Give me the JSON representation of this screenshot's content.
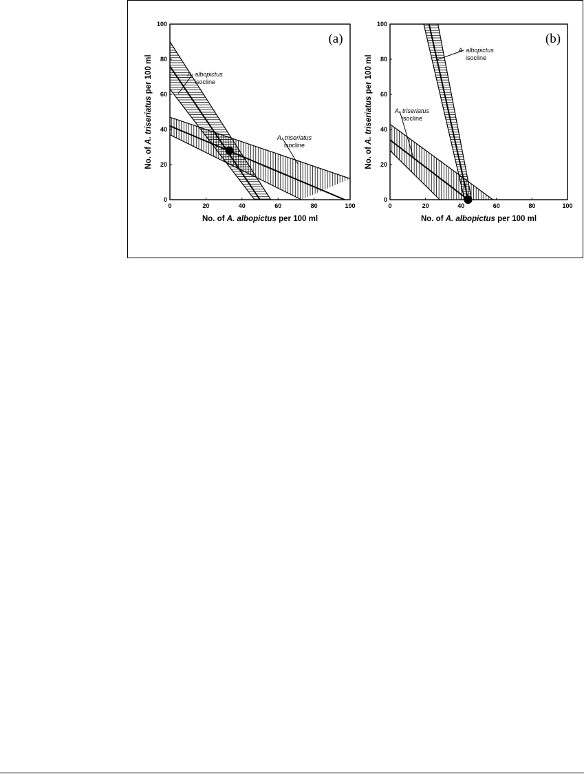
{
  "chart_data": [
    {
      "type": "area",
      "panel_label": "(a)",
      "xlabel": {
        "prefix": "No. of ",
        "species": "A. albopictus",
        "suffix": " per 100 ml"
      },
      "ylabel": {
        "prefix": "No. of ",
        "species": "A. triseriatus",
        "suffix": " per 100 ml"
      },
      "xlim": [
        0,
        100
      ],
      "ylim": [
        0,
        100
      ],
      "xticks": [
        0,
        20,
        40,
        60,
        80,
        100
      ],
      "yticks": [
        0,
        20,
        40,
        60,
        80,
        100
      ],
      "series": [
        {
          "name": "A. albopictus isocline",
          "hatch": "horizontal",
          "center": [
            [
              0,
              76
            ],
            [
              50,
              0
            ]
          ],
          "upper": [
            [
              0,
              90
            ],
            [
              56,
              0
            ]
          ],
          "lower": [
            [
              0,
              63
            ],
            [
              47,
              0
            ]
          ]
        },
        {
          "name": "A. triseriatus isocline",
          "hatch": "vertical",
          "center": [
            [
              0,
              42
            ],
            [
              97,
              0
            ]
          ],
          "upper": [
            [
              0,
              47
            ],
            [
              100,
              12
            ]
          ],
          "lower": [
            [
              0,
              37
            ],
            [
              73,
              0
            ]
          ]
        }
      ],
      "annotations": [
        {
          "italic": "A. albopictus",
          "text": "isocline",
          "target": [
            4,
            70
          ]
        },
        {
          "italic": "A. triseriatus",
          "text": "isocline",
          "target": [
            72,
            20
          ]
        }
      ],
      "equilibrium_point": [
        33,
        28
      ]
    },
    {
      "type": "area",
      "panel_label": "(b)",
      "xlabel": {
        "prefix": "No. of ",
        "species": "A. albopictus",
        "suffix": " per 100 ml"
      },
      "ylabel": {
        "prefix": "No. of ",
        "species": "A. triseriatus",
        "suffix": " per 100 ml"
      },
      "xlim": [
        0,
        100
      ],
      "ylim": [
        0,
        100
      ],
      "xticks": [
        0,
        20,
        40,
        60,
        80,
        100
      ],
      "yticks": [
        0,
        20,
        40,
        60,
        80,
        100
      ],
      "series": [
        {
          "name": "A. albopictus isocline",
          "hatch": "horizontal",
          "center": [
            [
              22,
              100
            ],
            [
              44,
              0
            ]
          ],
          "upper": [
            [
              27,
              100
            ],
            [
              46,
              0
            ]
          ],
          "lower": [
            [
              19,
              100
            ],
            [
              42,
              0
            ]
          ]
        },
        {
          "name": "A. triseriatus isocline",
          "hatch": "vertical",
          "center": [
            [
              0,
              34
            ],
            [
              44,
              0
            ]
          ],
          "upper": [
            [
              0,
              43
            ],
            [
              58,
              0
            ]
          ],
          "lower": [
            [
              0,
              28
            ],
            [
              28,
              0
            ]
          ]
        }
      ],
      "annotations": [
        {
          "italic": "A. albopictus",
          "text": "isocline",
          "target": [
            25,
            82
          ]
        },
        {
          "italic": "A. triseriatus",
          "text": "isocline",
          "target": [
            15,
            22
          ]
        }
      ],
      "equilibrium_point": [
        44,
        0
      ]
    }
  ]
}
